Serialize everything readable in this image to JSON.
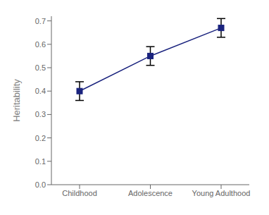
{
  "chart_data": {
    "type": "line",
    "categories": [
      "Childhood",
      "Adolescence",
      "Young Adulthood"
    ],
    "values": [
      0.4,
      0.55,
      0.67
    ],
    "error_lower": [
      0.04,
      0.04,
      0.04
    ],
    "error_upper": [
      0.04,
      0.04,
      0.04
    ],
    "color": "#1a237e",
    "marker": "square",
    "ylabel": "Heritability",
    "ylim": [
      0.0,
      0.72
    ],
    "yticks": [
      {
        "value": 0.0,
        "label": "0.0"
      },
      0.1,
      0.2,
      0.3,
      0.4,
      0.5,
      0.6,
      0.7
    ]
  }
}
